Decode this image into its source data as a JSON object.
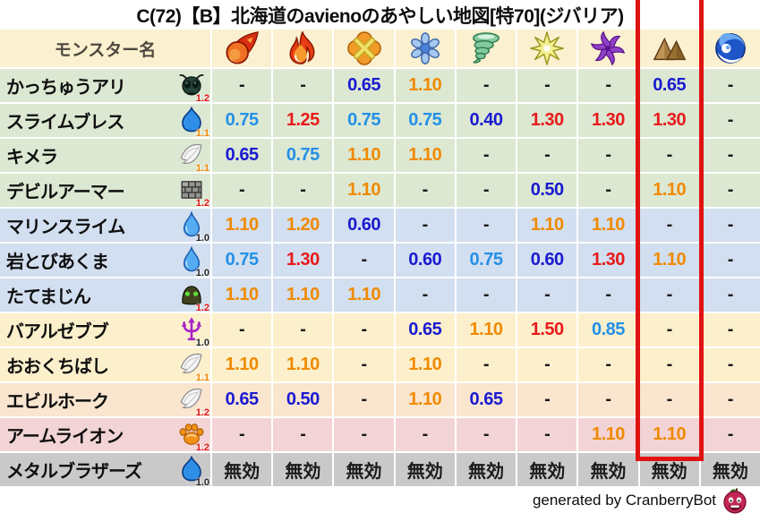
{
  "title": "C(72)【B】北海道のavienoのあやしい地図[特70](ジバリア)",
  "footer": {
    "text": "generated by CranberryBot"
  },
  "highlight": {
    "column_index": 7,
    "color": "#e01212"
  },
  "colors": {
    "bands": {
      "header": "#fbf0cf",
      "green": "#dce8d2",
      "blue": "#d2dff0",
      "cream": "#fcf0cc",
      "peach": "#fae5cf",
      "pink": "#f3d4d6",
      "gray": "#c9c9c9"
    },
    "values": {
      "strong_resist": "#1a1ad0",
      "resist": "#2390e8",
      "weak": "#f08a00",
      "very_weak": "#e81a1a",
      "neutral": "#1a1a1a"
    },
    "weights": {
      "red": "#e01010",
      "orange": "#f08300",
      "black": "#222222"
    }
  },
  "table": {
    "name_header": "モンスター名",
    "element_columns": [
      {
        "name": "fire",
        "icon": "fireball-icon"
      },
      {
        "name": "flame",
        "icon": "flame-icon"
      },
      {
        "name": "explosion",
        "icon": "io-burst-icon"
      },
      {
        "name": "ice",
        "icon": "snowflake-icon"
      },
      {
        "name": "wind",
        "icon": "tornado-icon"
      },
      {
        "name": "light",
        "icon": "spark-icon"
      },
      {
        "name": "dark",
        "icon": "pinwheel-icon"
      },
      {
        "name": "earth",
        "icon": "mountain-icon",
        "highlighted": true
      },
      {
        "name": "water",
        "icon": "wave-icon"
      }
    ],
    "rows": [
      {
        "name": "かっちゅうアリ",
        "family_icon": "bug-icon",
        "weight": "1.2",
        "weight_color": "red",
        "band": "green",
        "values": [
          "-",
          "-",
          "0.65",
          "1.10",
          "-",
          "-",
          "-",
          "0.65",
          "-"
        ]
      },
      {
        "name": "スライムブレス",
        "family_icon": "slime-icon",
        "weight": "1.1",
        "weight_color": "orange",
        "band": "green",
        "values": [
          "0.75",
          "1.25",
          "0.75",
          "0.75",
          "0.40",
          "1.30",
          "1.30",
          "1.30",
          "-"
        ]
      },
      {
        "name": "キメラ",
        "family_icon": "wing-icon",
        "weight": "1.1",
        "weight_color": "orange",
        "band": "green",
        "values": [
          "0.65",
          "0.75",
          "1.10",
          "1.10",
          "-",
          "-",
          "-",
          "-",
          "-"
        ]
      },
      {
        "name": "デビルアーマー",
        "family_icon": "brick-icon",
        "weight": "1.2",
        "weight_color": "red",
        "band": "green",
        "values": [
          "-",
          "-",
          "1.10",
          "-",
          "-",
          "0.50",
          "-",
          "1.10",
          "-"
        ]
      },
      {
        "name": "マリンスライム",
        "family_icon": "drop-icon",
        "weight": "1.0",
        "weight_color": "black",
        "band": "blue",
        "values": [
          "1.10",
          "1.20",
          "0.60",
          "-",
          "-",
          "1.10",
          "1.10",
          "-",
          "-"
        ]
      },
      {
        "name": "岩とびあくま",
        "family_icon": "drop-icon",
        "weight": "1.0",
        "weight_color": "black",
        "band": "blue",
        "values": [
          "0.75",
          "1.30",
          "-",
          "0.60",
          "0.75",
          "0.60",
          "1.30",
          "1.10",
          "-"
        ]
      },
      {
        "name": "たてまじん",
        "family_icon": "helm-icon",
        "weight": "1.2",
        "weight_color": "red",
        "band": "blue",
        "values": [
          "1.10",
          "1.10",
          "1.10",
          "-",
          "-",
          "-",
          "-",
          "-",
          "-"
        ]
      },
      {
        "name": "バアルゼブブ",
        "family_icon": "trident-icon",
        "weight": "1.0",
        "weight_color": "black",
        "band": "cream",
        "values": [
          "-",
          "-",
          "-",
          "0.65",
          "1.10",
          "1.50",
          "0.85",
          "-",
          "-"
        ]
      },
      {
        "name": "おおくちばし",
        "family_icon": "wing-icon",
        "weight": "1.1",
        "weight_color": "orange",
        "band": "cream",
        "values": [
          "1.10",
          "1.10",
          "-",
          "1.10",
          "-",
          "-",
          "-",
          "-",
          "-"
        ]
      },
      {
        "name": "エビルホーク",
        "family_icon": "wing-icon",
        "weight": "1.2",
        "weight_color": "red",
        "band": "peach",
        "values": [
          "0.65",
          "0.50",
          "-",
          "1.10",
          "0.65",
          "-",
          "-",
          "-",
          "-"
        ]
      },
      {
        "name": "アームライオン",
        "family_icon": "paw-icon",
        "weight": "1.2",
        "weight_color": "red",
        "band": "pink",
        "values": [
          "-",
          "-",
          "-",
          "-",
          "-",
          "-",
          "1.10",
          "1.10",
          "-"
        ]
      },
      {
        "name": "メタルブラザーズ",
        "family_icon": "slime-icon",
        "weight": "1.0",
        "weight_color": "black",
        "band": "gray",
        "values": [
          "無効",
          "無効",
          "無効",
          "無効",
          "無効",
          "無効",
          "無効",
          "無効",
          "無効"
        ]
      }
    ]
  }
}
